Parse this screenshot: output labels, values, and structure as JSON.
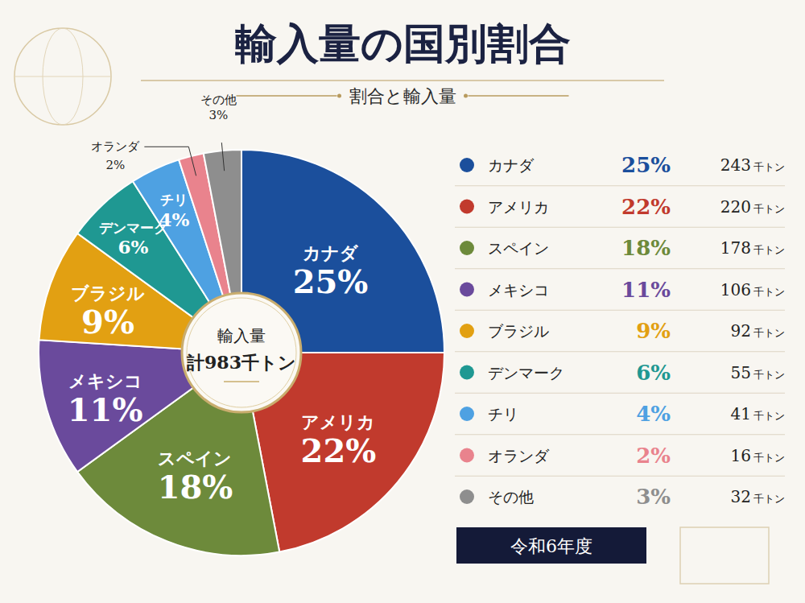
{
  "chart_data": {
    "type": "pie",
    "title": "輸入量の国別割合",
    "subtitle": "割合と輸入量",
    "categories": [
      "カナダ",
      "アメリカ",
      "スペイン",
      "メキシコ",
      "ブラジル",
      "デンマーク",
      "チリ",
      "オランダ",
      "その他"
    ],
    "values": [
      25,
      22,
      18,
      11,
      9,
      6,
      4,
      2,
      3
    ],
    "value_labels": [
      "25%",
      "22%",
      "18%",
      "11%",
      "9%",
      "6%",
      "4%",
      "2%",
      "3%"
    ],
    "colors": [
      "#1b4f9c",
      "#c13a2d",
      "#6d8a3b",
      "#6a4a9c",
      "#e2a012",
      "#1f9892",
      "#4ea1e2",
      "#e9838d",
      "#8e8e8e"
    ],
    "data_labels": true,
    "legend": "right",
    "tonnage": [
      243,
      220,
      178,
      106,
      92,
      55,
      41,
      16,
      32
    ],
    "tonnage_unit": "千トン",
    "center_label": "輸入量",
    "total_label": "計983千トン",
    "note": "令和6年度"
  }
}
